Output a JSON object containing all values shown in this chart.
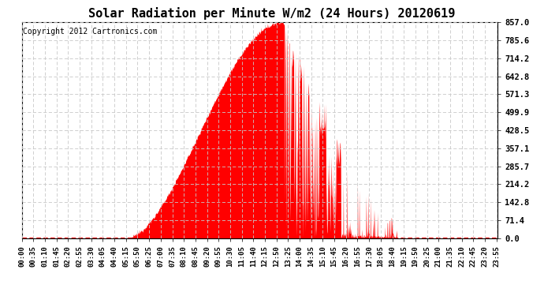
{
  "title": "Solar Radiation per Minute W/m2 (24 Hours) 20120619",
  "copyright": "Copyright 2012 Cartronics.com",
  "ymin": 0.0,
  "ymax": 857.0,
  "yticks": [
    0.0,
    71.4,
    142.8,
    214.2,
    285.7,
    357.1,
    428.5,
    499.9,
    571.3,
    642.8,
    714.2,
    785.6,
    857.0
  ],
  "fill_color": "#ff0000",
  "line_color": "#ff0000",
  "dashed_line_color": "#ff0000",
  "grid_color": "#c8c8c8",
  "background_color": "#ffffff",
  "border_color": "#000000",
  "title_fontsize": 11,
  "copyright_fontsize": 7,
  "tick_fontsize": 6.5,
  "ytick_fontsize": 7.5,
  "xtick_interval": 35,
  "rise_min": 315,
  "set_min": 1210,
  "peak_min": 790,
  "peak_val": 857.0
}
